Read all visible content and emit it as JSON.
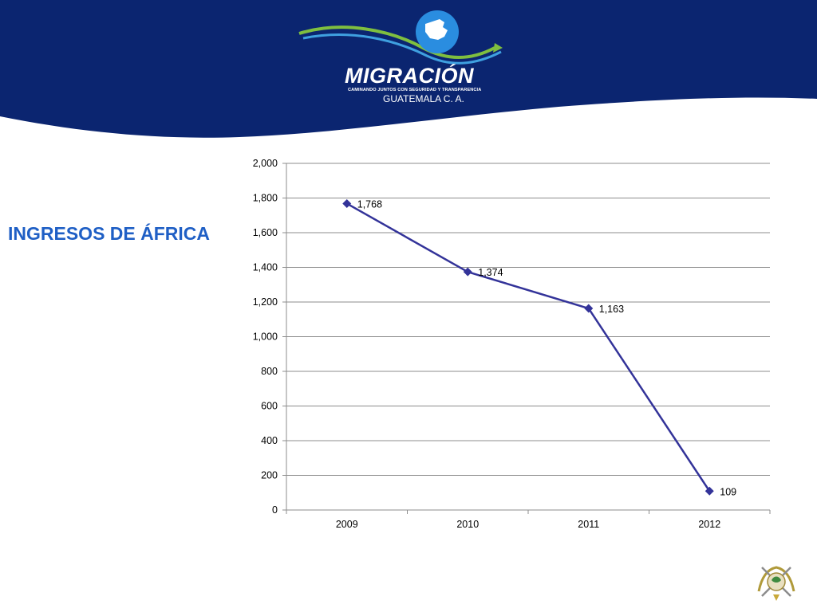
{
  "header": {
    "brand": "MIGRACIÓN",
    "tagline": "CAMINANDO JUNTOS CON SEGURIDAD Y TRANSPARENCIA",
    "country": "GUATEMALA C. A.",
    "background_color": "#0b2570"
  },
  "slide": {
    "title": "INGRESOS DE ÁFRICA",
    "title_color": "#1f5fc5"
  },
  "chart_data": {
    "type": "line",
    "categories": [
      "2009",
      "2010",
      "2011",
      "2012"
    ],
    "series": [
      {
        "values": [
          1768,
          1374,
          1163,
          109
        ],
        "color": "#333399",
        "marker": "diamond"
      }
    ],
    "data_labels": [
      "1,768",
      "1,374",
      "1,163",
      "109"
    ],
    "ylim": [
      0,
      2000
    ],
    "yticks": [
      0,
      200,
      400,
      600,
      800,
      1000,
      1200,
      1400,
      1600,
      1800,
      2000
    ],
    "ytick_labels": [
      "0",
      "200",
      "400",
      "600",
      "800",
      "1,000",
      "1,200",
      "1,400",
      "1,600",
      "1,800",
      "2,000"
    ],
    "grid": true,
    "legend": "none",
    "title": "",
    "xlabel": "",
    "ylabel": ""
  },
  "footer": {
    "emblem_icon": "guatemala-coat-of-arms-icon"
  }
}
